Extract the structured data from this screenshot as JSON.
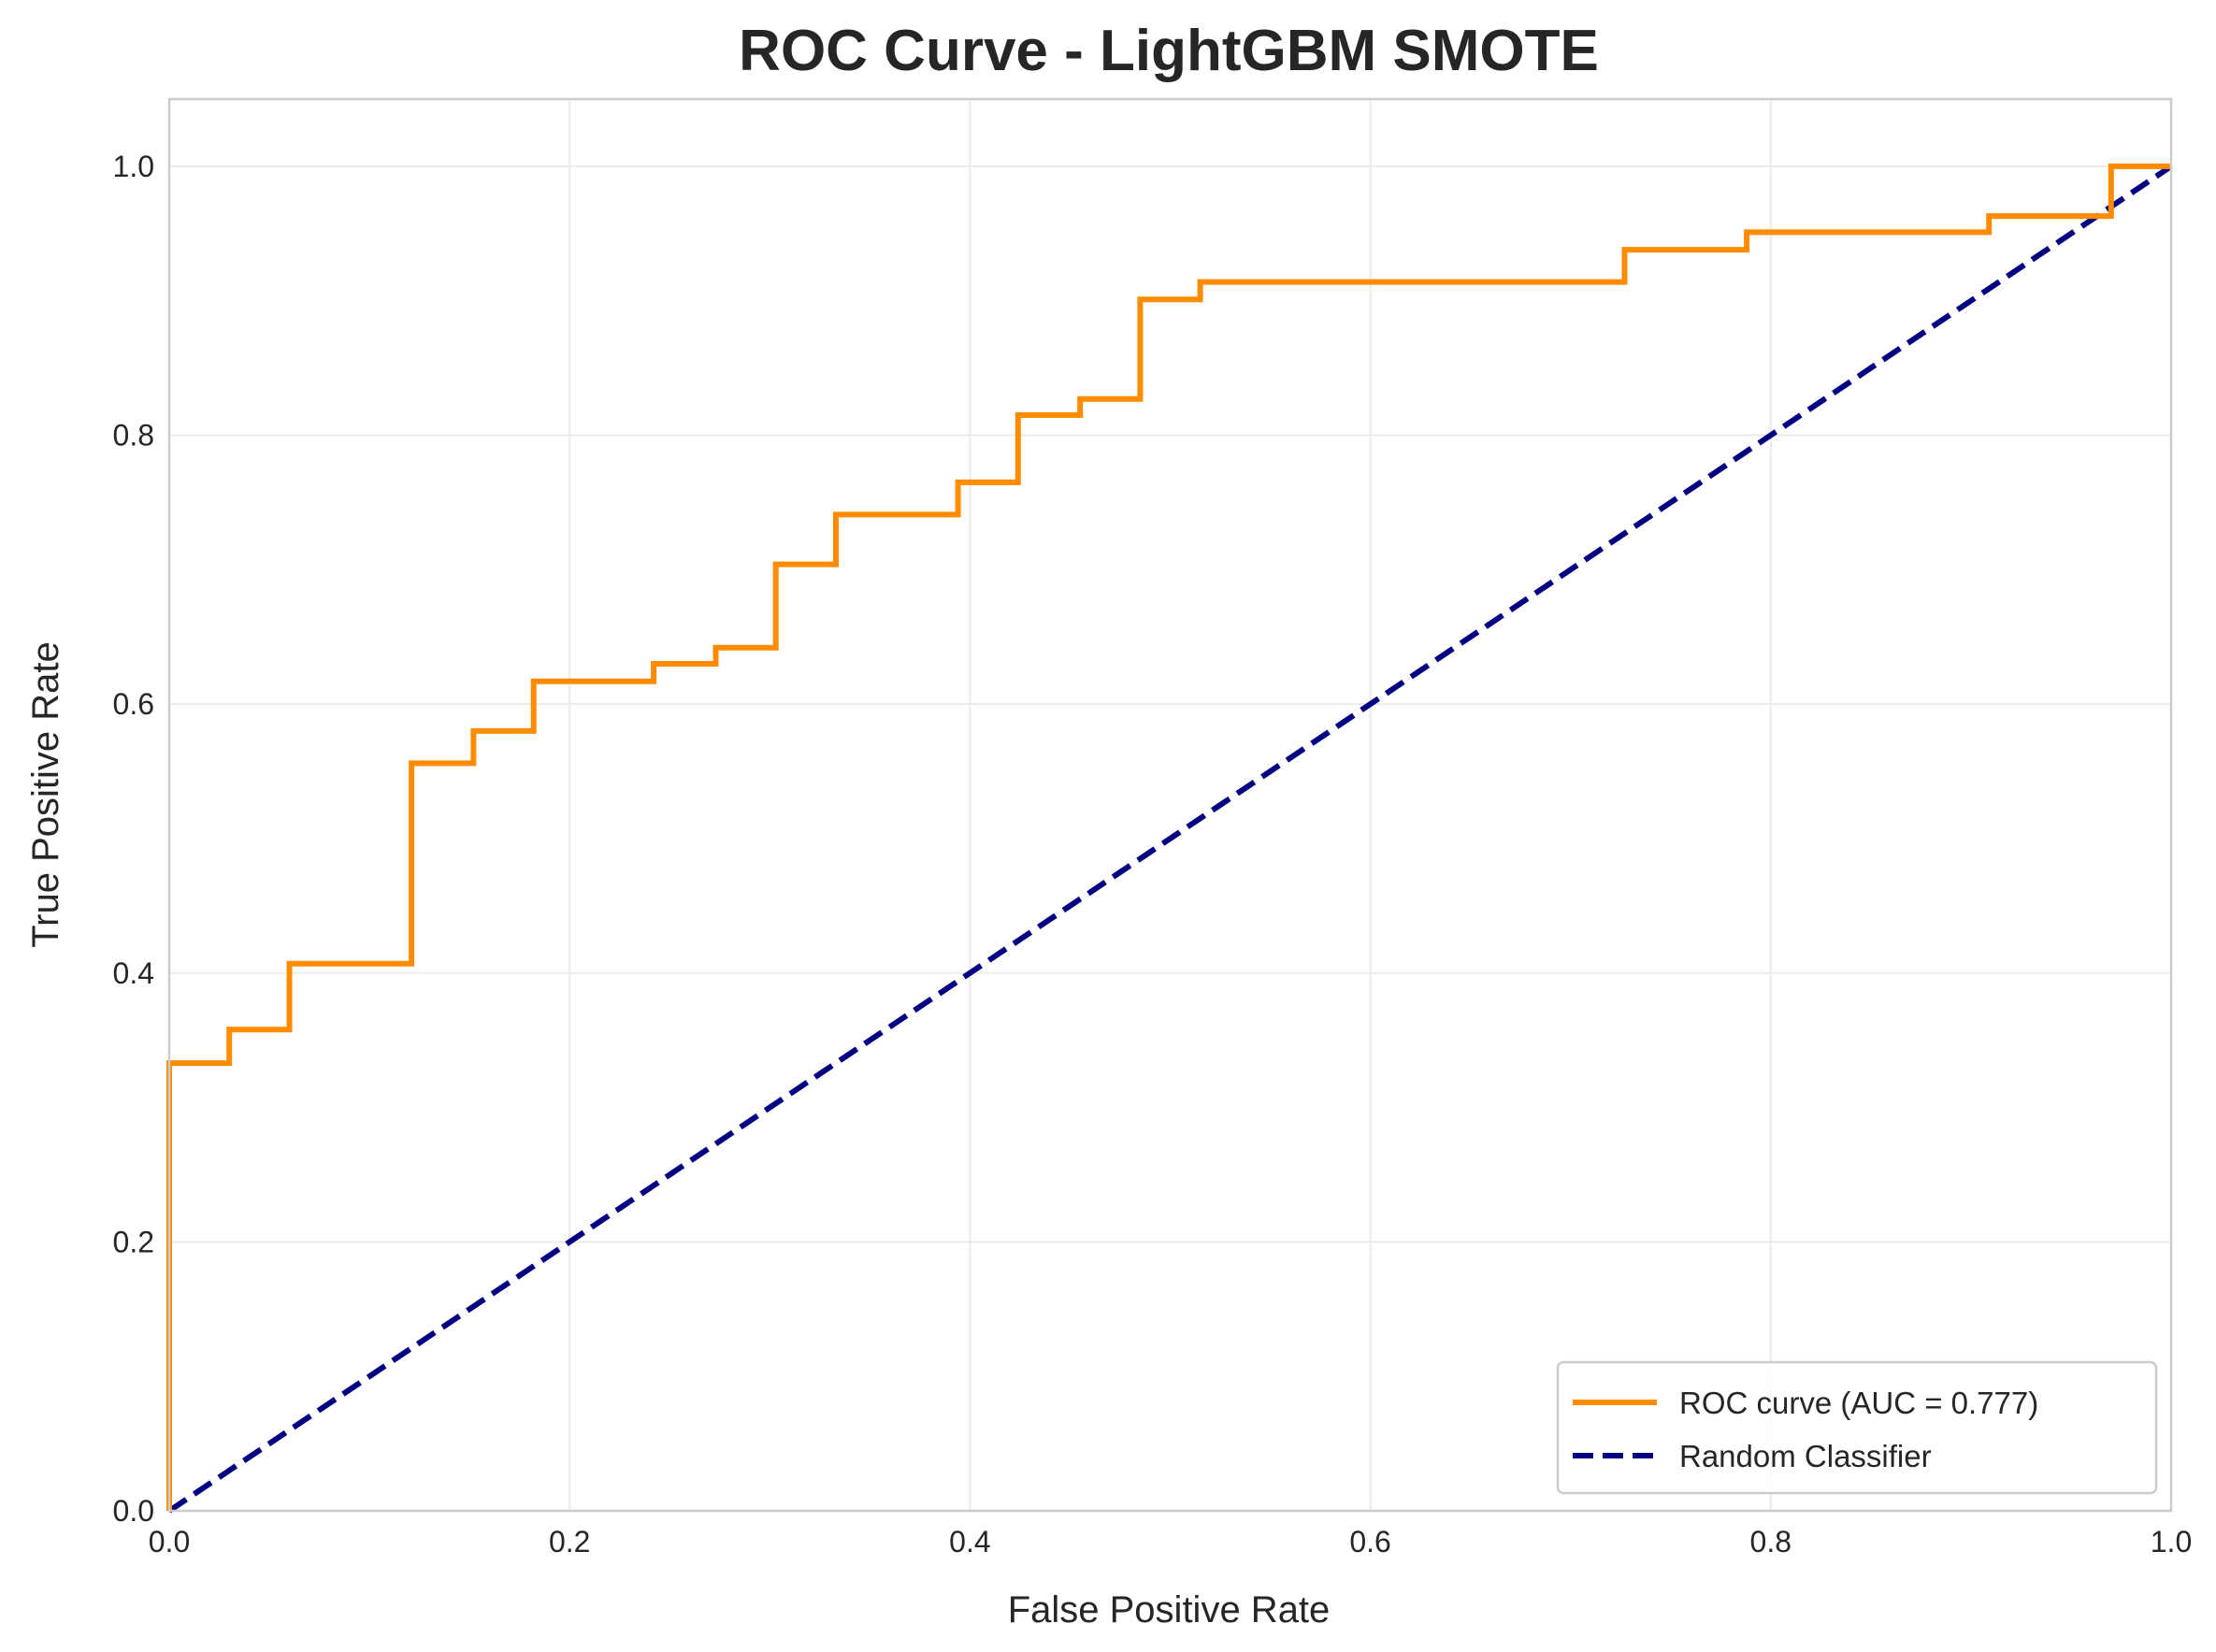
{
  "chart_data": {
    "type": "line",
    "title": "ROC Curve - LightGBM SMOTE",
    "xlabel": "False Positive Rate",
    "ylabel": "True Positive Rate",
    "xlim": [
      0.0,
      1.0
    ],
    "ylim": [
      0.0,
      1.05
    ],
    "x_ticks": [
      "0.0",
      "0.2",
      "0.4",
      "0.6",
      "0.8",
      "1.0"
    ],
    "y_ticks": [
      "0.0",
      "0.2",
      "0.4",
      "0.6",
      "0.8",
      "1.0"
    ],
    "grid": true,
    "legend_position": "lower-right",
    "series": [
      {
        "name": "ROC curve (AUC = 0.777)",
        "color": "#ff8c00",
        "style": "solid-step",
        "x": [
          0.0,
          0.0,
          0.03,
          0.03,
          0.06,
          0.06,
          0.121,
          0.121,
          0.152,
          0.152,
          0.182,
          0.182,
          0.242,
          0.242,
          0.273,
          0.273,
          0.303,
          0.303,
          0.333,
          0.333,
          0.394,
          0.394,
          0.424,
          0.424,
          0.455,
          0.455,
          0.485,
          0.485,
          0.515,
          0.515,
          0.727,
          0.727,
          0.788,
          0.788,
          0.909,
          0.909,
          0.97,
          0.97,
          1.0
        ],
        "y": [
          0.0,
          0.333,
          0.333,
          0.358,
          0.358,
          0.407,
          0.407,
          0.556,
          0.556,
          0.58,
          0.58,
          0.617,
          0.617,
          0.63,
          0.63,
          0.642,
          0.642,
          0.704,
          0.704,
          0.741,
          0.741,
          0.765,
          0.765,
          0.815,
          0.815,
          0.827,
          0.827,
          0.901,
          0.901,
          0.914,
          0.914,
          0.938,
          0.938,
          0.951,
          0.951,
          0.963,
          0.963,
          1.0,
          1.0
        ]
      },
      {
        "name": "Random Classifier",
        "color": "#000080",
        "style": "dashed",
        "x": [
          0.0,
          1.0
        ],
        "y": [
          0.0,
          1.0
        ]
      }
    ]
  }
}
